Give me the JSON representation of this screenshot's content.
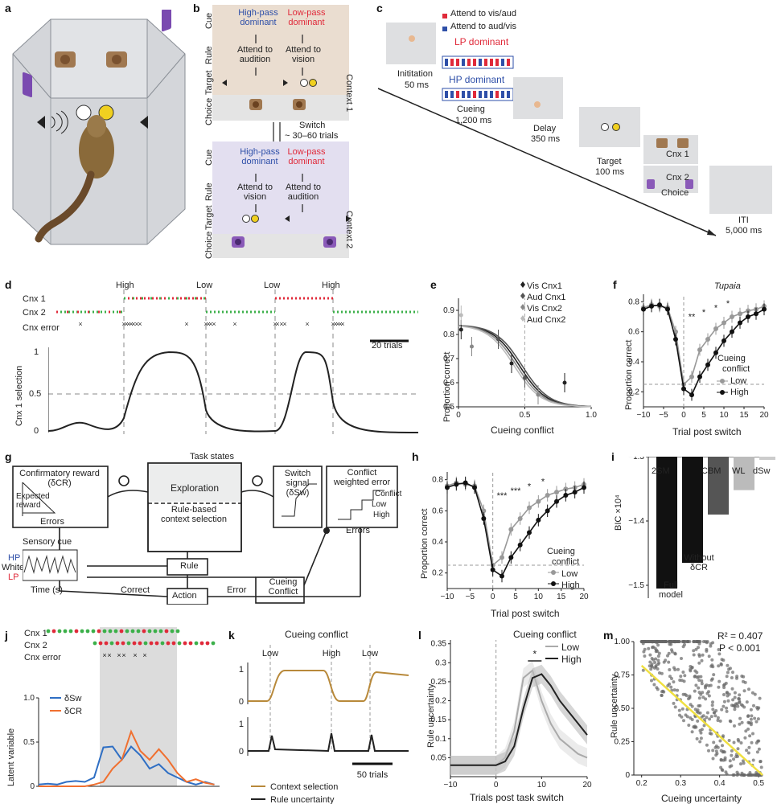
{
  "panel_letters": [
    "a",
    "b",
    "c",
    "d",
    "e",
    "f",
    "g",
    "h",
    "i",
    "j",
    "k",
    "l",
    "m"
  ],
  "panel_b": {
    "row_labels": [
      "Cue",
      "Rule",
      "Target",
      "Choice"
    ],
    "context1": {
      "label": "Context 1",
      "cue_left": "High-pass dominant",
      "cue_right": "Low-pass dominant",
      "rule_left": "Attend to audition",
      "rule_right": "Attend to vision"
    },
    "context2": {
      "label": "Context 2",
      "cue_left": "High-pass dominant",
      "cue_right": "Low-pass dominant",
      "rule_left": "Attend to vision",
      "rule_right": "Attend to audition"
    },
    "switch_line1": "Switch",
    "switch_line2": "~ 30–60 trials",
    "colors": {
      "context1_bg": "#eaddd0",
      "context2_bg": "#e3dff0",
      "hp": "#2e4fa8",
      "lp": "#e02a3a"
    }
  },
  "panel_c": {
    "legend_red": "Attend to vis/aud",
    "legend_blue": "Attend to aud/vis",
    "lp_dominant": "LP dominant",
    "hp_dominant": "HP dominant",
    "initiation": "Inititation",
    "initiation_ms": "50 ms",
    "cueing": "Cueing",
    "cueing_ms": "1,200 ms",
    "delay": "Delay",
    "delay_ms": "350 ms",
    "target": "Target",
    "target_ms": "100 ms",
    "cnx1": "Cnx 1",
    "cnx2": "Cnx 2",
    "choice": "Choice",
    "iti": "ITI",
    "iti_ms": "5,000 ms"
  },
  "panel_d": {
    "block_labels": [
      "High",
      "Low",
      "Low",
      "High"
    ],
    "row_labels": [
      "Cnx 1",
      "Cnx 2",
      "Cnx error"
    ],
    "scale_bar": "20 trials",
    "ylabel": "Cnx 1 selection",
    "yticks": [
      "1",
      "0.5",
      "0"
    ]
  },
  "panel_e": {
    "legend": [
      "Vis Cnx1",
      "Aud Cnx1",
      "Vis Cnx2",
      "Aud Cnx2"
    ],
    "xlabel": "Cueing conflict",
    "ylabel": "Proportion correct",
    "xticks": [
      "0",
      "0.5",
      "1.0"
    ],
    "yticks": [
      "0.9",
      "0.8",
      "0.7",
      "0.6",
      "0.5"
    ]
  },
  "panel_f": {
    "title": "Tupaia",
    "xlabel": "Trial post switch",
    "ylabel": "Proportion correct",
    "xticks": [
      "−10",
      "−5",
      "0",
      "5",
      "10",
      "15",
      "20"
    ],
    "yticks": [
      "0.8",
      "0.6",
      "0.4",
      "0.2"
    ],
    "legend_title": "Cueing conflict",
    "legend_low": "Low",
    "legend_high": "High",
    "sig": [
      "**",
      "*",
      "*",
      "*"
    ]
  },
  "panel_g": {
    "task_states": "Task states",
    "exploration": "Exploration",
    "rule_based": "Rule-based context selection",
    "confirmatory": "Confirmatory reward (δCR)",
    "expected_reward": "Expected reward",
    "errors": "Errors",
    "switch_signal": "Switch signal (δSw)",
    "conflict_weighted": "Conflict weighted error",
    "conflict_label": "Conflict",
    "low": "Low",
    "high": "High",
    "sensory_cue": "Sensory cue",
    "hp": "HP",
    "white": "White",
    "lp": "LP",
    "time": "Time (s)",
    "rule": "Rule",
    "cueing_conflict": "Cueing Conflict",
    "correct": "Correct",
    "action": "Action",
    "error": "Error"
  },
  "panel_h": {
    "xlabel": "Trial post switch",
    "ylabel": "Proportion correct",
    "xticks": [
      "−10",
      "−5",
      "0",
      "5",
      "10",
      "15",
      "20"
    ],
    "yticks": [
      "0.8",
      "0.6",
      "0.4",
      "0.2"
    ],
    "legend_title": "Cueing conflict",
    "legend_low": "Low",
    "legend_high": "High",
    "sig": [
      "***",
      "***",
      "*",
      "*"
    ]
  },
  "panel_i": {
    "model_labels": [
      "2SM",
      "CBM",
      "WL",
      "dSw"
    ],
    "ylabel": "BIC ×10⁴",
    "yticks": [
      "−1.3",
      "−1.4",
      "−1.5"
    ],
    "full_model": "Full model",
    "without": "Without δCR"
  },
  "panel_j": {
    "row_labels": [
      "Cnx 1",
      "Cnx 2",
      "Cnx error"
    ],
    "legend": [
      "δSw",
      "δCR"
    ],
    "ylabel": "Latent variable",
    "yticks": [
      "1.0",
      "0.5",
      "0"
    ],
    "colors": {
      "sw": "#2f6fc4",
      "cr": "#f07030"
    }
  },
  "panel_k": {
    "title": "Cueing conflict",
    "block_labels": [
      "Low",
      "High",
      "Low"
    ],
    "yticks_top": [
      "1",
      "0"
    ],
    "yticks_bottom": [
      "1",
      "0"
    ],
    "scale_bar": "50 trials",
    "legend_context": "Context selection",
    "legend_rule": "Rule uncertainty",
    "colors": {
      "context": "#b8893a",
      "rule": "#222222"
    }
  },
  "panel_l": {
    "legend_title": "Cueing conflict",
    "legend_low": "Low",
    "legend_high": "High",
    "sig": "*",
    "xlabel": "Trials post task switch",
    "ylabel": "Rule uncertainty",
    "xticks": [
      "−10",
      "0",
      "10",
      "20"
    ],
    "yticks": [
      "0.35",
      "0.3",
      "0.25",
      "0.2",
      "0.15",
      "0.1",
      "0.05"
    ]
  },
  "panel_m": {
    "r2": "R² = 0.407",
    "p": "P < 0.001",
    "xlabel": "Cueing uncertainty",
    "ylabel": "Rule uncertainty",
    "xticks": [
      "0.2",
      "0.3",
      "0.4",
      "0.5"
    ],
    "yticks": [
      "1.00",
      "0.75",
      "0.50",
      "0.25",
      "0"
    ]
  }
}
